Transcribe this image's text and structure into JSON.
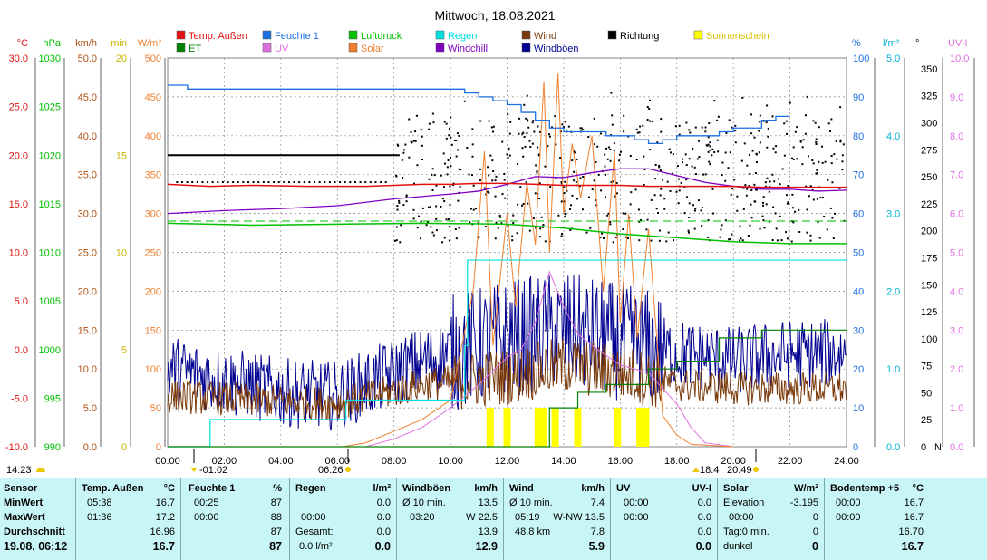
{
  "title": "Mittwoch, 18.08.2021",
  "colors": {
    "temp": "#e01010",
    "humidity": "#1c6fe0",
    "pressure": "#00c000",
    "rain": "#00e0e0",
    "wind": "#7a3a0a",
    "direction": "#000000",
    "sun": "#ffff00",
    "et": "#008000",
    "uv": "#e070e0",
    "solar": "#f08030",
    "windchill": "#8000c0",
    "gusts": "#000090"
  },
  "legend": [
    {
      "label": "Temp. Außen",
      "color": "#e01010",
      "key": "temp"
    },
    {
      "label": "Feuchte 1",
      "color": "#1c6fe0",
      "key": "humidity"
    },
    {
      "label": "Luftdruck",
      "color": "#00c000",
      "key": "pressure"
    },
    {
      "label": "Regen",
      "color": "#00e0e0",
      "key": "rain"
    },
    {
      "label": "Wind",
      "color": "#7a3a0a",
      "key": "wind"
    },
    {
      "label": "Richtung",
      "color": "#000000",
      "key": "direction"
    },
    {
      "label": "Sonnenschein",
      "color": "#ffff00",
      "key": "sun"
    },
    {
      "label": "ET",
      "color": "#008000",
      "key": "et"
    },
    {
      "label": "UV",
      "color": "#e070e0",
      "key": "uv"
    },
    {
      "label": "Solar",
      "color": "#f08030",
      "key": "solar"
    },
    {
      "label": "Windchill",
      "color": "#8000c0",
      "key": "windchill"
    },
    {
      "label": "Windböen",
      "color": "#000090",
      "key": "gusts"
    }
  ],
  "chart_data": {
    "type": "line",
    "title": "Mittwoch, 18.08.2021",
    "x_ticks": [
      "00:00",
      "02:00",
      "04:00",
      "06:00",
      "08:00",
      "10:00",
      "12:00",
      "14:00",
      "16:00",
      "18:00",
      "20:00",
      "22:00",
      "24:00"
    ],
    "x_range_hours": [
      0,
      24
    ],
    "grid": true,
    "axes": {
      "temp": {
        "unit": "°C",
        "range": [
          -10,
          30
        ],
        "ticks": [
          "30.0",
          "25.0",
          "20.0",
          "15.0",
          "10.0",
          "5.0",
          "0.0",
          "-5.0",
          "-10.0"
        ]
      },
      "pressure": {
        "unit": "hPa",
        "range": [
          990,
          1030
        ],
        "ticks": [
          "1030",
          "1025",
          "1020",
          "1015",
          "1010",
          "1005",
          "1000",
          "995",
          "990"
        ]
      },
      "wind": {
        "unit": "km/h",
        "range": [
          0,
          50
        ],
        "ticks": [
          "50.0",
          "45.0",
          "40.0",
          "35.0",
          "30.0",
          "25.0",
          "20.0",
          "15.0",
          "10.0",
          "5.0",
          "0.0"
        ]
      },
      "sunmin": {
        "unit": "min",
        "range": [
          0,
          20
        ],
        "ticks": [
          "20",
          "15",
          "10",
          "5",
          "0"
        ]
      },
      "solar": {
        "unit": "W/m²",
        "range": [
          0,
          500
        ],
        "ticks": [
          "500",
          "450",
          "400",
          "350",
          "300",
          "250",
          "200",
          "150",
          "100",
          "50",
          "0"
        ]
      },
      "humidity": {
        "unit": "%",
        "range": [
          0,
          100
        ],
        "ticks": [
          "100",
          "90",
          "80",
          "70",
          "60",
          "50",
          "40",
          "30",
          "20",
          "10",
          "0"
        ]
      },
      "rain": {
        "unit": "l/m²",
        "range": [
          0,
          5
        ],
        "ticks": [
          "5.0",
          "4.0",
          "3.0",
          "2.0",
          "1.0",
          "0.0"
        ]
      },
      "direction": {
        "unit": "°",
        "range": [
          0,
          360
        ],
        "ticks": [
          "350",
          "325",
          "300",
          "275",
          "250",
          "225",
          "200",
          "175",
          "150",
          "125",
          "100",
          "75",
          "50",
          "25",
          "0"
        ],
        "bottom_label": "N"
      },
      "uv": {
        "unit": "UV-I",
        "range": [
          0,
          10
        ],
        "ticks": [
          "10.0",
          "9.0",
          "8.0",
          "7.0",
          "6.0",
          "5.0",
          "4.0",
          "3.0",
          "2.0",
          "1.0",
          "0.0"
        ]
      }
    },
    "series": [
      {
        "name": "Temp. Außen",
        "axis": "temp",
        "x": [
          0,
          1.5,
          3,
          5,
          6,
          7,
          8,
          9,
          10,
          11,
          12,
          13,
          14,
          15,
          16,
          17,
          18,
          19,
          20,
          21,
          22,
          23,
          24
        ],
        "y": [
          17.0,
          16.8,
          16.9,
          16.8,
          16.8,
          16.8,
          16.9,
          17.0,
          17.0,
          17.1,
          17.1,
          17.0,
          16.9,
          16.9,
          16.9,
          16.8,
          16.8,
          16.8,
          16.8,
          16.7,
          16.7,
          16.7,
          16.7
        ]
      },
      {
        "name": "Feuchte 1",
        "axis": "humidity",
        "x": [
          0,
          0.7,
          1.5,
          3,
          5,
          6,
          7,
          8,
          9,
          10,
          10.5,
          11,
          11.5,
          12,
          12.5,
          13,
          13.5,
          14,
          14.5,
          15,
          15.5,
          16,
          16.5,
          17,
          17.5,
          18,
          18.5,
          19,
          19.5,
          20,
          21,
          21.5,
          22
        ],
        "y": [
          93,
          92,
          92,
          92,
          92,
          92,
          92,
          92,
          92,
          92,
          91,
          90,
          89,
          88,
          86,
          84,
          82,
          81,
          81,
          81,
          80,
          80,
          79,
          78,
          79,
          80,
          80,
          80,
          81,
          82,
          84,
          85,
          85
        ]
      },
      {
        "name": "Luftdruck",
        "axis": "pressure",
        "x": [
          0,
          3,
          6,
          9,
          12,
          14,
          16,
          18,
          20,
          22,
          24
        ],
        "y": [
          1013.0,
          1012.8,
          1012.9,
          1013.0,
          1012.9,
          1012.5,
          1011.9,
          1011.5,
          1011.1,
          1010.9,
          1010.9
        ]
      },
      {
        "name": "Regen",
        "axis": "rain",
        "x": [
          0,
          1.5,
          1.5,
          4.2,
          6.3,
          9.8,
          10.5,
          10.6,
          11.6,
          12.5,
          24
        ],
        "y": [
          0,
          0,
          0.35,
          0.35,
          0.6,
          0.6,
          1.3,
          2.4,
          2.4,
          2.4,
          2.4
        ]
      },
      {
        "name": "ET",
        "axis": "rain",
        "x": [
          0,
          12,
          13.5,
          14.5,
          15.5,
          17,
          18,
          19.5,
          21,
          22,
          24
        ],
        "y": [
          0,
          0,
          0.5,
          0.7,
          0.8,
          1.0,
          1.1,
          1.4,
          1.5,
          1.5,
          1.5
        ]
      },
      {
        "name": "Windchill",
        "axis": "temp",
        "x": [
          0,
          2,
          4,
          6,
          8,
          10,
          11,
          12,
          12.5,
          13,
          14,
          15,
          16,
          17,
          18,
          19,
          20,
          21,
          22,
          23,
          24
        ],
        "y": [
          14.0,
          14.3,
          14.5,
          14.8,
          15.5,
          16.0,
          16.3,
          17.0,
          17.4,
          17.8,
          17.7,
          18.2,
          18.6,
          18.6,
          17.9,
          17.2,
          16.8,
          16.5,
          16.5,
          16.3,
          16.4
        ]
      },
      {
        "name": "Solar",
        "axis": "solar",
        "x": [
          6.2,
          7,
          8,
          9,
          10,
          10.8,
          11.2,
          11.5,
          12,
          12.3,
          12.7,
          13,
          13.3,
          13.5,
          13.8,
          14,
          14.3,
          14.6,
          15,
          15.4,
          15.8,
          16,
          16.3,
          16.6,
          17,
          17.5,
          18,
          18.5,
          20
        ],
        "y": [
          0,
          5,
          20,
          35,
          60,
          200,
          380,
          130,
          300,
          180,
          340,
          260,
          470,
          250,
          480,
          300,
          390,
          320,
          400,
          200,
          380,
          160,
          300,
          140,
          280,
          40,
          15,
          3,
          0
        ]
      },
      {
        "name": "UV",
        "axis": "uv",
        "x": [
          7,
          8,
          9,
          10,
          11,
          12,
          12.5,
          13,
          13.5,
          14,
          14.5,
          15,
          16,
          17,
          18,
          18.5,
          19,
          20
        ],
        "y": [
          0,
          0.2,
          0.5,
          1.0,
          1.6,
          2.3,
          2.5,
          3.2,
          4.5,
          3.6,
          2.9,
          2.6,
          2.1,
          1.9,
          1.1,
          0.5,
          0.1,
          0
        ]
      }
    ],
    "wind_series": [
      {
        "name": "Wind",
        "axis": "wind",
        "mean_level_x": [
          0,
          6,
          9,
          12,
          14,
          16,
          18,
          20,
          22,
          24
        ],
        "mean_level_y": [
          6.5,
          5.5,
          8,
          9,
          10.5,
          9.5,
          8,
          7.5,
          7.5,
          7.5
        ]
      },
      {
        "name": "Windböen",
        "axis": "wind",
        "mean_level_x": [
          0,
          4,
          6,
          9,
          12,
          14,
          16,
          18,
          20,
          22,
          24
        ],
        "mean_level_y": [
          10,
          7,
          6.5,
          11,
          14,
          15,
          13.5,
          12,
          11,
          12,
          12
        ]
      }
    ],
    "sunshine_minutes": [
      {
        "time": 11.4,
        "min": 2
      },
      {
        "time": 12.0,
        "min": 2
      },
      {
        "time": 13.1,
        "min": 2
      },
      {
        "time": 13.3,
        "min": 2
      },
      {
        "time": 13.7,
        "min": 2
      },
      {
        "time": 14.5,
        "min": 2
      },
      {
        "time": 15.9,
        "min": 2
      },
      {
        "time": 16.7,
        "min": 2
      },
      {
        "time": 16.9,
        "min": 2
      }
    ],
    "direction_samples_deg_range": [
      150,
      330
    ],
    "direction_night_level_deg": 270,
    "direction_night_level2_deg": 245,
    "bottom_markers": [
      "14:23",
      "-01:02",
      "06:26",
      "18:4",
      "20:49"
    ]
  },
  "stats": {
    "sensor": {
      "header": "Sensor",
      "min": "MinWert",
      "max": "MaxWert",
      "avg": "Durchschnitt",
      "date": "19.08. 06:12"
    },
    "temp": {
      "header": "Temp. Außen",
      "unit": "°C",
      "min_time": "05:38",
      "min": "16.7",
      "max_time": "01:36",
      "max": "17.2",
      "avg": "16.96",
      "cur": "16.7"
    },
    "humidity": {
      "header": "Feuchte 1",
      "unit": "%",
      "min_time": "00:25",
      "min": "87",
      "max_time": "00:00",
      "max": "88",
      "avg": "87",
      "cur": "87"
    },
    "rain": {
      "header": "Regen",
      "unit": "l/m²",
      "min": "0.0",
      "max_time": "00:00",
      "max": "0.0",
      "total_label": "Gesamt:",
      "total": "0.0",
      "cur_label": "0.0 l/m²",
      "cur": "0.0"
    },
    "gusts": {
      "header": "Windböen",
      "unit": "km/h",
      "avg_label": "Ø 10 min.",
      "avg": "13.5",
      "max_time": "03:20",
      "max_dir": "W 22.5",
      "avg2": "13.9",
      "cur": "12.9"
    },
    "wind": {
      "header": "Wind",
      "unit": "km/h",
      "avg_label": "Ø 10 min.",
      "avg": "7.4",
      "max_time": "05:19",
      "max_dir": "W-NW 13.5",
      "dist": "48.8 km",
      "avg2": "7.8",
      "cur": "5.9"
    },
    "uv": {
      "header": "UV",
      "unit": "UV-I",
      "min_time": "00:00",
      "min": "0.0",
      "max_time": "00:00",
      "max": "0.0",
      "avg": "0.0",
      "cur": "0.0"
    },
    "solar": {
      "header": "Solar",
      "unit": "W/m²",
      "elev_label": "Elevation",
      "elev": "-3.195",
      "max_time": "00:00",
      "max": "0",
      "day_label": "Tag:0 min.",
      "day": "0",
      "dark": "dunkel",
      "cur": "0"
    },
    "soil": {
      "header": "Bodentemp +5",
      "unit": "°C",
      "min_time": "00:00",
      "min": "16.7",
      "max_time": "00:00",
      "max": "16.7",
      "avg": "16.70",
      "cur": "16.7"
    }
  }
}
